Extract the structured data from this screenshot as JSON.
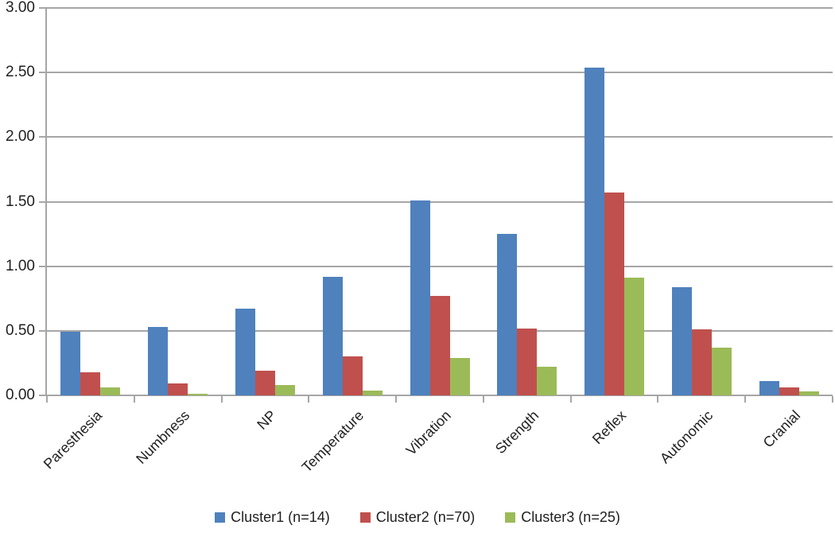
{
  "chart_data": {
    "type": "bar",
    "title": "",
    "xlabel": "",
    "ylabel": "",
    "categories": [
      "Paresthesia",
      "Numbness",
      "NP",
      "Temperature",
      "Vibration",
      "Strength",
      "Reflex",
      "Autonomic",
      "Cranial"
    ],
    "series": [
      {
        "name": "Cluster1 (n=14)",
        "color": "#4F81BD",
        "values": [
          0.49,
          0.53,
          0.67,
          0.92,
          1.51,
          1.25,
          2.54,
          0.84,
          0.11
        ]
      },
      {
        "name": "Cluster2 (n=70)",
        "color": "#C0504D",
        "values": [
          0.18,
          0.09,
          0.19,
          0.3,
          0.77,
          0.52,
          1.57,
          0.51,
          0.06
        ]
      },
      {
        "name": "Cluster3 (n=25)",
        "color": "#9BBB59",
        "values": [
          0.06,
          0.01,
          0.08,
          0.04,
          0.29,
          0.22,
          0.91,
          0.37,
          0.03
        ]
      }
    ],
    "ylim": [
      0.0,
      3.0
    ],
    "ytick_step": 0.5,
    "ytick_labels": [
      "0.00",
      "0.50",
      "1.00",
      "1.50",
      "2.00",
      "2.50",
      "3.00"
    ],
    "grid": true,
    "legend_position": "bottom",
    "colors": {
      "gridline": "#A6A6A6",
      "axis": "#A6A6A6",
      "text": "#1F1F1F",
      "background": "#FFFFFF"
    }
  }
}
